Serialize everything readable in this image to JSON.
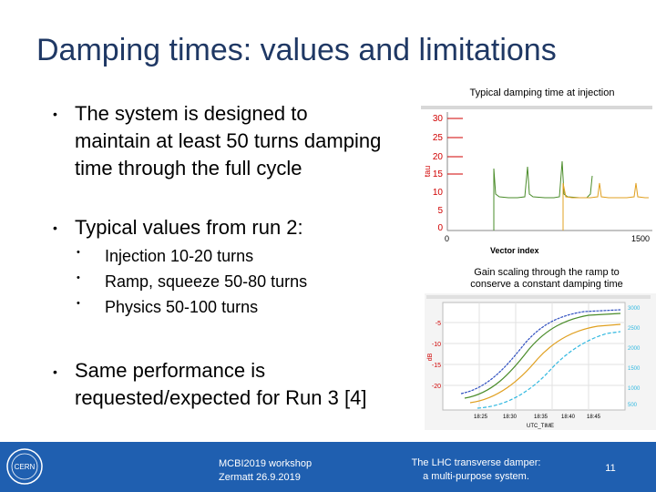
{
  "title": "Damping times: values and limitations",
  "bullets": [
    {
      "lines": [
        "The system is designed to",
        "maintain at least 50 turns damping",
        "time through the full cycle"
      ]
    },
    {
      "lines": [
        "Typical values from run 2:"
      ],
      "sub": [
        "Injection 10-20 turns",
        "Ramp, squeeze 50-80 turns",
        "Physics 50-100 turns"
      ]
    },
    {
      "lines": [
        "Same performance is",
        "requested/expected for Run 3 [4]"
      ]
    }
  ],
  "bullet_char": "•",
  "chart1": {
    "caption": "Typical damping time at injection",
    "y_ticks": [
      "30",
      "25",
      "20",
      "15",
      "10",
      "5",
      "0"
    ],
    "x_ticks": [
      "0",
      "1500"
    ],
    "ylabel": "tau",
    "xlabel": "Vector index"
  },
  "chart2": {
    "caption_lines": [
      "Gain scaling through the ramp to",
      "conserve a constant damping time"
    ],
    "y_ticks_left": [
      "-5",
      "-10",
      "-15",
      "-20"
    ],
    "y_ticks_right": [
      "3000",
      "2500",
      "2000",
      "1500",
      "1000",
      "500"
    ],
    "x_ticks": [
      "18:25",
      "18:30",
      "18:35",
      "18:40",
      "18:45"
    ],
    "ylabel": "dB",
    "xlabel": "UTC_TIME"
  },
  "footer": {
    "logo_text": "CERN",
    "workshop_lines": [
      "MCBI2019 workshop",
      "Zermatt 26.9.2019"
    ],
    "talk_lines": [
      "The LHC transverse damper:",
      "a multi-purpose system."
    ],
    "page_number": "11"
  },
  "colors": {
    "title": "#1f3864",
    "footer": "#1f5fb0",
    "green": "#4a8c2a",
    "orange": "#e0a020",
    "blue": "#3050c0",
    "cyan": "#30b8e0",
    "tick": "#d00000"
  }
}
